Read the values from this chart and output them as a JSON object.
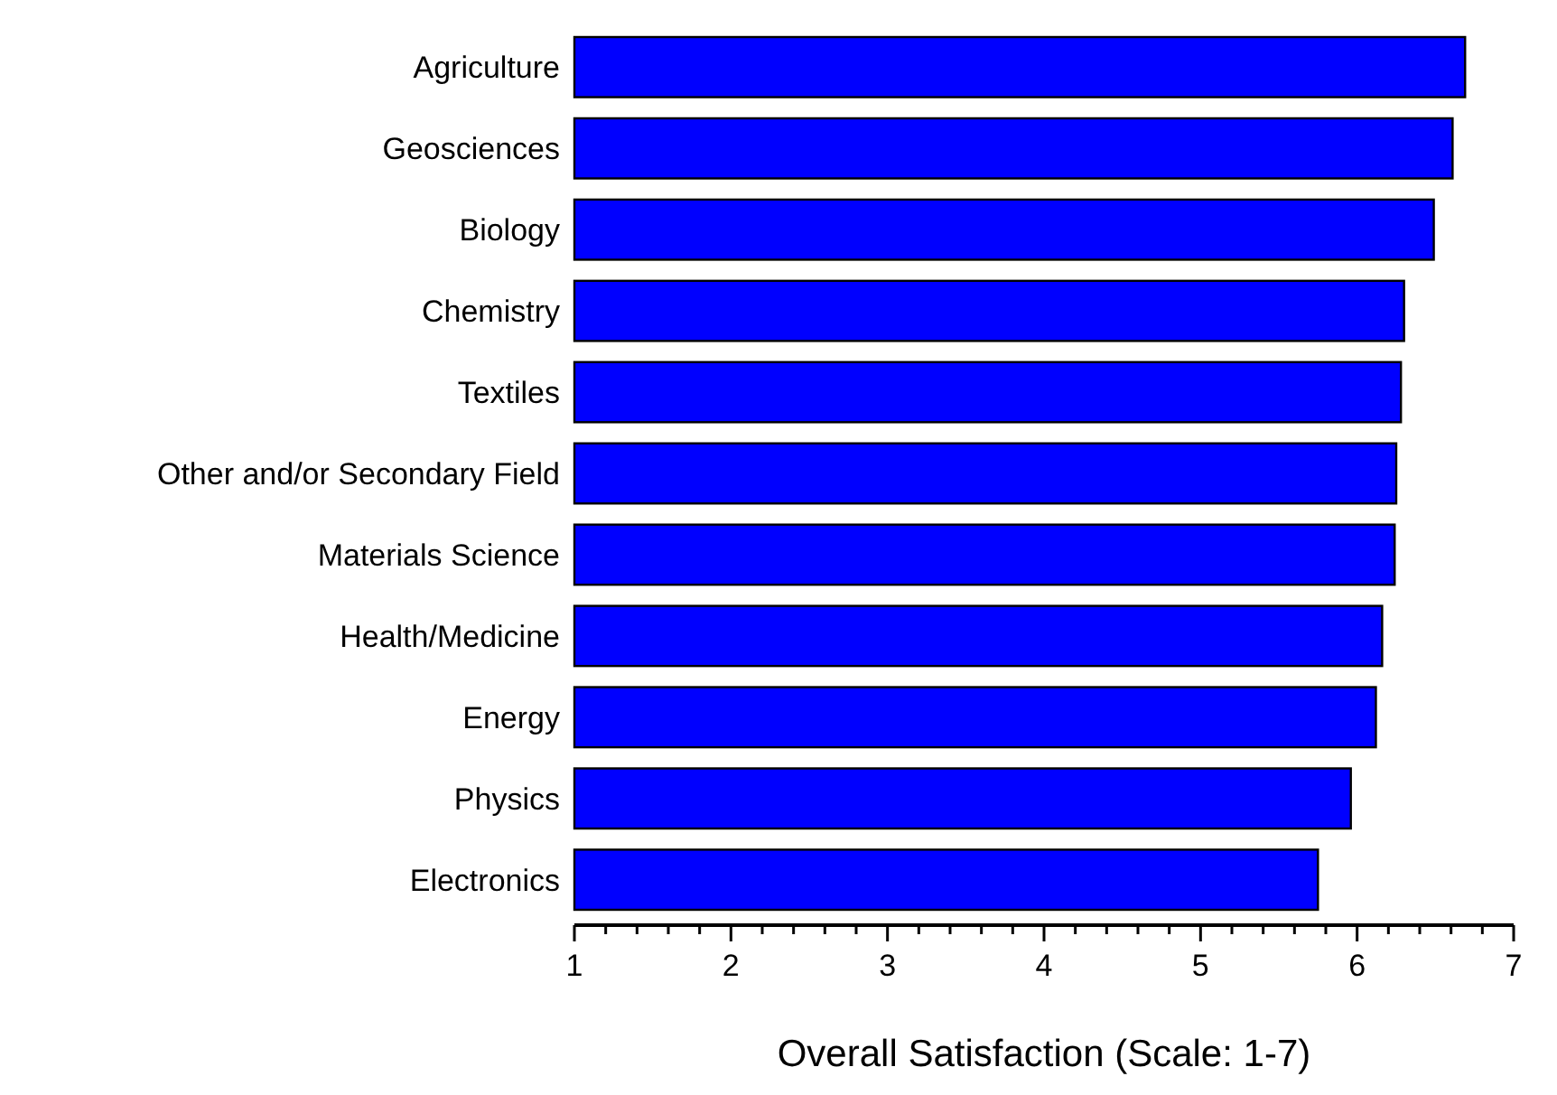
{
  "chart_data": {
    "type": "bar",
    "orientation": "horizontal",
    "xlabel": "Overall Satisfaction (Scale: 1-7)",
    "categories": [
      "Agriculture",
      "Geosciences",
      "Biology",
      "Chemistry",
      "Textiles",
      "Other and/or Secondary Field",
      "Materials Science",
      "Health/Medicine",
      "Energy",
      "Physics",
      "Electronics"
    ],
    "values": [
      6.69,
      6.61,
      6.49,
      6.3,
      6.28,
      6.25,
      6.24,
      6.16,
      6.12,
      5.96,
      5.75
    ],
    "color": "#0000ff",
    "xlim": [
      1,
      7
    ],
    "xticks": [
      1,
      {
        "value": 1.2,
        "label": null
      },
      {
        "value": 1.4,
        "label": null
      },
      {
        "value": 1.6,
        "label": null
      },
      {
        "value": 1.8,
        "label": null
      },
      2,
      {
        "value": 2.2,
        "label": null
      },
      {
        "value": 2.4,
        "label": null
      },
      {
        "value": 2.6,
        "label": null
      },
      {
        "value": 2.8,
        "label": null
      },
      3,
      {
        "value": 3.2,
        "label": null
      },
      {
        "value": 3.4,
        "label": null
      },
      {
        "value": 3.6,
        "label": null
      },
      {
        "value": 3.8,
        "label": null
      },
      4,
      {
        "value": 4.2,
        "label": null
      },
      {
        "value": 4.4,
        "label": null
      },
      {
        "value": 4.6,
        "label": null
      },
      {
        "value": 4.8,
        "label": null
      },
      5,
      {
        "value": 5.2,
        "label": null
      },
      {
        "value": 5.4,
        "label": null
      },
      {
        "value": 5.6,
        "label": null
      },
      {
        "value": 5.8,
        "label": null
      },
      6,
      {
        "value": 6.2,
        "label": null
      },
      {
        "value": 6.4,
        "label": null
      },
      {
        "value": 6.6,
        "label": null
      },
      {
        "value": 6.8,
        "label": null
      },
      7
    ]
  }
}
